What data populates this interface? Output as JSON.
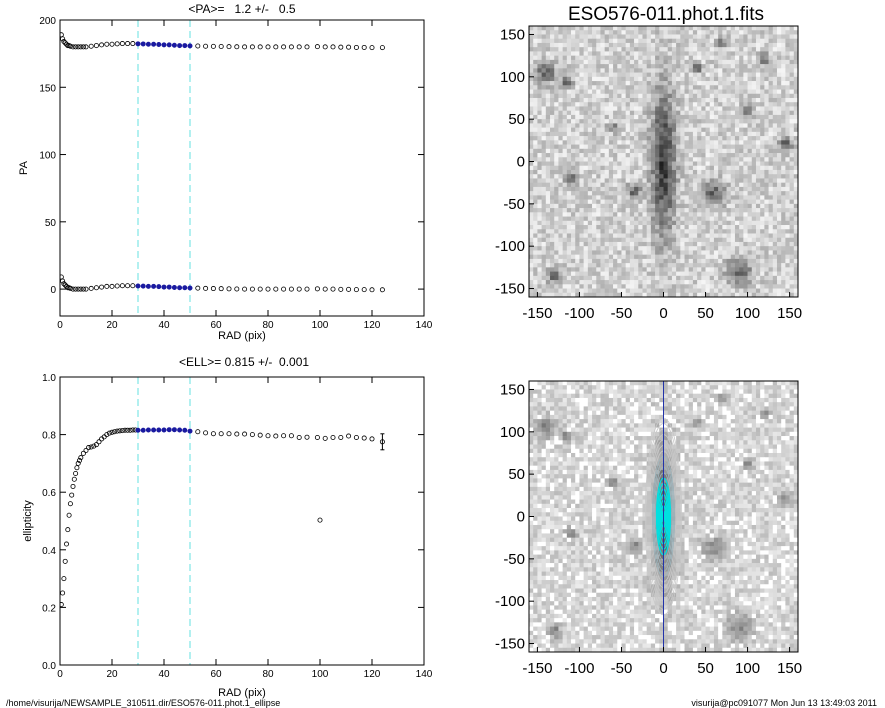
{
  "footer": {
    "path": "/home/visurija/NEWSAMPLE_310511.dir/ESO576-011.phot.1_ellipse",
    "user_time": "visurija@pc091077  Mon Jun 13 13:49:03 2011"
  },
  "colors": {
    "axis": "#000000",
    "points": "#000000",
    "fit_range": "#1a1aa0",
    "fit_lines": "#7fe5e5",
    "contours": "#00e0e0",
    "major_axis": "#2233aa"
  },
  "chart_data": [
    {
      "type": "scatter",
      "title": "<PA>=   1.2 +/-   0.5",
      "xlabel": "RAD (pix)",
      "ylabel": "PA",
      "xlim": [
        0,
        140
      ],
      "ylim": [
        -20,
        200
      ],
      "xticks": [
        "0",
        "20",
        "40",
        "60",
        "80",
        "100",
        "120",
        "140"
      ],
      "yticks": [
        "0",
        "50",
        "100",
        "150",
        "200"
      ],
      "fit_range_lines": [
        30,
        50
      ],
      "grid": false,
      "series": [
        {
          "x": [
            0.5,
            1,
            1.5,
            2,
            2.5,
            3,
            3.5,
            4,
            5,
            6,
            7,
            8,
            9,
            10,
            12,
            14,
            16,
            18,
            20,
            22,
            24,
            26,
            28,
            30,
            32,
            34,
            36,
            38,
            40,
            42,
            44,
            46,
            48,
            50,
            53,
            56,
            59,
            62,
            65,
            68,
            71,
            74,
            77,
            80,
            83,
            86,
            89,
            92,
            95,
            99,
            102,
            105,
            108,
            111,
            114,
            117,
            120,
            124
          ],
          "y": [
            189,
            186,
            184,
            183,
            182,
            181,
            181,
            180.5,
            180,
            180,
            180,
            180,
            180,
            180,
            180.5,
            181,
            181.5,
            182,
            182,
            182.3,
            182.5,
            182.5,
            182.5,
            182.3,
            182.2,
            182,
            182,
            181.8,
            181.5,
            181.5,
            181.2,
            181,
            181,
            180.8,
            180.7,
            180.5,
            180.4,
            180.3,
            180.2,
            180.1,
            180,
            180,
            180,
            180,
            180,
            180,
            180,
            180,
            180,
            180.2,
            180,
            180,
            179.8,
            179.8,
            179.6,
            179.6,
            179.5,
            179.5
          ]
        },
        {
          "x": [
            0.5,
            1,
            1.5,
            2,
            2.5,
            3,
            3.5,
            4,
            5,
            6,
            7,
            8,
            9,
            10,
            12,
            14,
            16,
            18,
            20,
            22,
            24,
            26,
            28,
            30,
            32,
            34,
            36,
            38,
            40,
            42,
            44,
            46,
            48,
            50,
            53,
            56,
            59,
            62,
            65,
            68,
            71,
            74,
            77,
            80,
            83,
            86,
            89,
            92,
            95,
            99,
            102,
            105,
            108,
            111,
            114,
            117,
            120,
            124
          ],
          "y": [
            9,
            6,
            4,
            3,
            2,
            1,
            1,
            0.5,
            0,
            0,
            0,
            0,
            0,
            0,
            0.5,
            1,
            1.5,
            2,
            2,
            2.3,
            2.5,
            2.5,
            2.5,
            2.3,
            2.2,
            2,
            2,
            1.8,
            1.5,
            1.5,
            1.2,
            1,
            1,
            0.8,
            0.7,
            0.5,
            0.4,
            0.3,
            0.2,
            0.1,
            0,
            0,
            0,
            0,
            0,
            0,
            0,
            0,
            0,
            0.2,
            0,
            0,
            -0.2,
            -0.2,
            -0.4,
            -0.4,
            -0.5,
            -0.5
          ]
        }
      ]
    },
    {
      "type": "scatter",
      "title": "<ELL>= 0.815 +/-  0.001",
      "xlabel": "RAD (pix)",
      "ylabel": "ellipticity",
      "xlim": [
        0,
        140
      ],
      "ylim": [
        0.0,
        1.0
      ],
      "xticks": [
        "0",
        "20",
        "40",
        "60",
        "80",
        "100",
        "120",
        "140"
      ],
      "yticks": [
        "0.0",
        "0.2",
        "0.4",
        "0.6",
        "0.8",
        "1.0"
      ],
      "fit_range_lines": [
        30,
        50
      ],
      "grid": false,
      "series": [
        {
          "x": [
            0.5,
            1,
            1.5,
            2,
            2.5,
            3,
            3.5,
            4,
            4.5,
            5,
            5.5,
            6,
            6.5,
            7,
            7.5,
            8,
            9,
            10,
            11,
            12,
            13,
            14,
            15,
            16,
            17,
            18,
            19,
            20,
            21,
            22,
            23,
            24,
            25,
            26,
            27,
            28,
            29,
            30,
            32,
            34,
            36,
            38,
            40,
            42,
            44,
            46,
            48,
            50,
            53,
            56,
            59,
            62,
            65,
            68,
            71,
            74,
            77,
            80,
            83,
            86,
            89,
            92,
            95,
            99,
            100,
            102,
            105,
            108,
            111,
            114,
            117,
            120,
            124
          ],
          "y": [
            0.21,
            0.25,
            0.3,
            0.36,
            0.42,
            0.47,
            0.52,
            0.56,
            0.59,
            0.62,
            0.645,
            0.665,
            0.685,
            0.7,
            0.71,
            0.72,
            0.735,
            0.745,
            0.755,
            0.757,
            0.76,
            0.765,
            0.775,
            0.785,
            0.792,
            0.8,
            0.805,
            0.808,
            0.81,
            0.812,
            0.813,
            0.814,
            0.815,
            0.815,
            0.815,
            0.816,
            0.816,
            0.815,
            0.815,
            0.816,
            0.816,
            0.816,
            0.816,
            0.817,
            0.817,
            0.816,
            0.815,
            0.812,
            0.81,
            0.806,
            0.803,
            0.803,
            0.803,
            0.802,
            0.802,
            0.8,
            0.798,
            0.796,
            0.795,
            0.796,
            0.796,
            0.79,
            0.791,
            0.79,
            0.503,
            0.787,
            0.79,
            0.79,
            0.795,
            0.79,
            0.788,
            0.785,
            0.775
          ]
        }
      ]
    },
    {
      "type": "heatmap",
      "title": "ESO576-011.phot.1.fits",
      "xlim": [
        -160,
        160
      ],
      "ylim": [
        -160,
        160
      ],
      "xticks": [
        "-150",
        "-100",
        "-50",
        "0",
        "50",
        "100",
        "150"
      ],
      "yticks": [
        "-150",
        "-100",
        "-50",
        "0",
        "50",
        "100",
        "150"
      ]
    },
    {
      "type": "heatmap",
      "title": "",
      "xlim": [
        -160,
        160
      ],
      "ylim": [
        -160,
        160
      ],
      "xticks": [
        "-150",
        "-100",
        "-50",
        "0",
        "50",
        "100",
        "150"
      ],
      "yticks": [
        "-150",
        "-100",
        "-50",
        "0",
        "50",
        "100",
        "150"
      ]
    }
  ]
}
